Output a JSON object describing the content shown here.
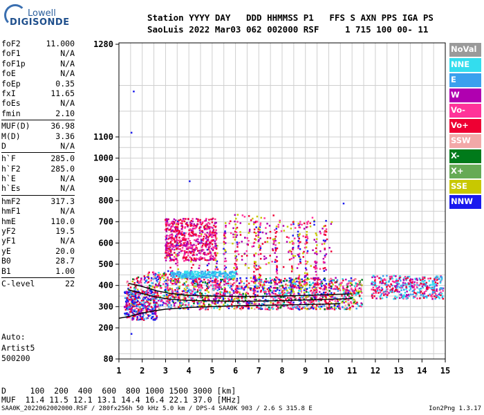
{
  "logo": {
    "top": "Lowell",
    "main": "DIGISONDE"
  },
  "header": {
    "line1": "Station YYYY DAY   DDD HHMMSS P1   FFS S AXN PPS IGA PS",
    "line2": "SaoLuis 2022 Mar03 062 002000 RSF     1 715 100 00- 11"
  },
  "params": [
    [
      [
        "foF2",
        "11.000"
      ],
      [
        "foF1",
        "N/A"
      ],
      [
        "foF1p",
        "N/A"
      ],
      [
        "foE",
        "N/A"
      ],
      [
        "foEp",
        "0.35"
      ],
      [
        "fxI",
        "11.65"
      ],
      [
        "foEs",
        "N/A"
      ],
      [
        "fmin",
        "2.10"
      ]
    ],
    [
      [
        "MUF(D)",
        "36.98"
      ],
      [
        "M(D)",
        "3.36"
      ],
      [
        "D",
        "N/A"
      ]
    ],
    [
      [
        "h`F",
        "285.0"
      ],
      [
        "h`F2",
        "285.0"
      ],
      [
        "h`E",
        "N/A"
      ],
      [
        "h`Es",
        "N/A"
      ]
    ],
    [
      [
        "hmF2",
        "317.3"
      ],
      [
        "hmF1",
        "N/A"
      ],
      [
        "hmE",
        "110.0"
      ],
      [
        "yF2",
        "19.5"
      ],
      [
        "yF1",
        "N/A"
      ],
      [
        "yE",
        "20.0"
      ],
      [
        "B0",
        "28.7"
      ],
      [
        "B1",
        "1.00"
      ]
    ],
    [
      [
        "C-level",
        "22"
      ]
    ]
  ],
  "auto": [
    "Auto:",
    "Artist5",
    "500200"
  ],
  "legend": [
    {
      "label": "NoVal",
      "color": "#9a9a9a"
    },
    {
      "label": "NNE",
      "color": "#33ddee"
    },
    {
      "label": "E",
      "color": "#3aa0ee"
    },
    {
      "label": "W",
      "color": "#b000b0"
    },
    {
      "label": "Vo-",
      "color": "#ff3399"
    },
    {
      "label": "Vo+",
      "color": "#ee0033"
    },
    {
      "label": "SSW",
      "color": "#f2a8a8"
    },
    {
      "label": "X-",
      "color": "#007a1a"
    },
    {
      "label": "X+",
      "color": "#66aa55"
    },
    {
      "label": "SSE",
      "color": "#c8c800"
    },
    {
      "label": "NNW",
      "color": "#1a1aee"
    }
  ],
  "bottom": {
    "line1": "D     100  200  400  600  800 1000 1500 3000 [km]",
    "line2": "MUF  11.4 11.5 12.1 13.1 14.4 16.4 22.1 37.0 [MHz]"
  },
  "footer": {
    "left": "SAA0K_2022062002000.RSF / 280fx256h 50 kHz 5.0 km / DPS-4 SAA0K 903 / 2.6 S 315.8 E",
    "right": "Ion2Png 1.3.17"
  },
  "chart_data": {
    "type": "scatter",
    "title": "",
    "xlabel": "",
    "ylabel": "",
    "x_ticks": [
      1,
      2,
      3,
      4,
      5,
      6,
      7,
      8,
      9,
      10,
      11,
      12,
      13,
      14,
      15
    ],
    "y_ticks": [
      80,
      200,
      300,
      400,
      500,
      600,
      700,
      800,
      900,
      1000,
      1100,
      1280
    ],
    "xlim": [
      1,
      15
    ],
    "y_axis": "nonlinear: 80 at bottom, then 100 km steps from 200 to 1100, 1280 at top",
    "grid": true,
    "legend_position": "right",
    "traces": [
      {
        "name": "trace-o-lower",
        "x": [
          1.0,
          1.5,
          2.0,
          2.5,
          3.0,
          3.5,
          4.0,
          4.5,
          5.0,
          5.5,
          6.0,
          7.0,
          8.0,
          9.0,
          10.0,
          10.5
        ],
        "y": [
          245,
          255,
          270,
          280,
          288,
          292,
          296,
          298,
          300,
          302,
          304,
          306,
          308,
          310,
          312,
          314
        ]
      },
      {
        "name": "trace-o-upper",
        "x": [
          1.4,
          2.0,
          2.6,
          3.2,
          3.8,
          4.4,
          5.0,
          5.6,
          6.2,
          6.8,
          7.4,
          8.0,
          8.6,
          9.2,
          9.8,
          10.4,
          11.0
        ],
        "y": [
          410,
          395,
          375,
          362,
          355,
          352,
          350,
          349,
          348,
          348,
          349,
          350,
          352,
          354,
          356,
          358,
          360
        ]
      },
      {
        "name": "trace-x-upper",
        "x": [
          1.4,
          2.0,
          2.6,
          3.2,
          3.8,
          4.4,
          5.0,
          5.6,
          6.2,
          6.8,
          7.4,
          8.0,
          8.6,
          9.2,
          9.8,
          10.4,
          11.0
        ],
        "y": [
          380,
          362,
          345,
          335,
          330,
          328,
          327,
          326,
          326,
          326,
          327,
          328,
          330,
          332,
          334,
          336,
          338
        ]
      }
    ],
    "clusters": [
      {
        "name": "main-F-echoes",
        "x_range": [
          1.3,
          11.5
        ],
        "h_range": [
          240,
          450
        ],
        "color": "mixed"
      },
      {
        "name": "upper-spread",
        "x_range": [
          2.9,
          10.2
        ],
        "h_range": [
          450,
          760
        ],
        "color": "purple/pink"
      },
      {
        "name": "blue-band",
        "x_range": [
          3.2,
          6.0
        ],
        "h_range": [
          440,
          470
        ],
        "color": "light blue"
      },
      {
        "name": "right-block",
        "x_range": [
          11.8,
          14.9
        ],
        "h_range": [
          340,
          450
        ],
        "color": "cyan/pink"
      }
    ]
  }
}
